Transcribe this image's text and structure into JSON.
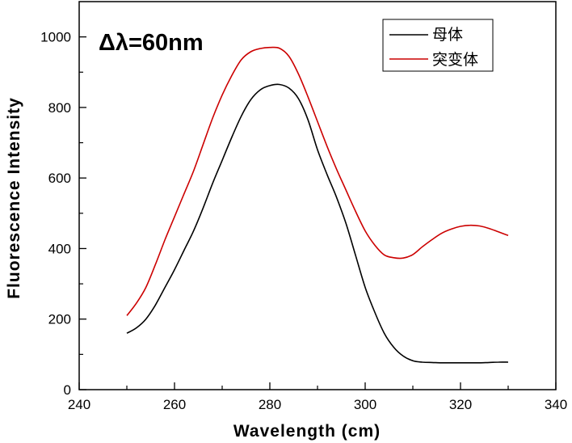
{
  "chart_data": {
    "type": "line",
    "xlabel": "Wavelength (cm)",
    "ylabel": "Fluorescence Intensity",
    "annotation": "Δλ=60nm",
    "xlim": [
      240,
      340
    ],
    "ylim": [
      0,
      1100
    ],
    "x_ticks": [
      240,
      260,
      280,
      300,
      320,
      340
    ],
    "y_ticks": [
      0,
      200,
      400,
      600,
      800,
      1000
    ],
    "grid": false,
    "legend_position": "top-right",
    "series": [
      {
        "name": "母体",
        "color": "#000000",
        "x": [
          250,
          252,
          254,
          256,
          258,
          260,
          262,
          264,
          266,
          268,
          270,
          272,
          274,
          276,
          278,
          280,
          282,
          284,
          286,
          288,
          290,
          292,
          294,
          296,
          298,
          300,
          302,
          304,
          306,
          308,
          310,
          312,
          314,
          316,
          318,
          320,
          322,
          324,
          326,
          328,
          330
        ],
        "values": [
          160,
          175,
          200,
          240,
          290,
          340,
          395,
          450,
          515,
          585,
          650,
          715,
          775,
          822,
          850,
          862,
          865,
          855,
          825,
          765,
          680,
          610,
          545,
          470,
          380,
          290,
          220,
          160,
          120,
          95,
          82,
          78,
          77,
          76,
          76,
          76,
          76,
          76,
          77,
          78,
          78
        ]
      },
      {
        "name": "突变体",
        "color": "#cc0000",
        "x": [
          250,
          252,
          254,
          256,
          258,
          260,
          262,
          264,
          266,
          268,
          270,
          272,
          274,
          276,
          278,
          280,
          282,
          284,
          286,
          288,
          290,
          292,
          294,
          296,
          298,
          300,
          302,
          304,
          306,
          308,
          310,
          312,
          314,
          316,
          318,
          320,
          322,
          324,
          326,
          328,
          330
        ],
        "values": [
          210,
          245,
          290,
          355,
          425,
          490,
          555,
          620,
          695,
          770,
          835,
          890,
          935,
          958,
          967,
          970,
          968,
          945,
          895,
          830,
          760,
          690,
          625,
          565,
          505,
          450,
          410,
          382,
          374,
          373,
          383,
          405,
          425,
          443,
          455,
          463,
          466,
          464,
          457,
          447,
          437
        ]
      }
    ]
  }
}
